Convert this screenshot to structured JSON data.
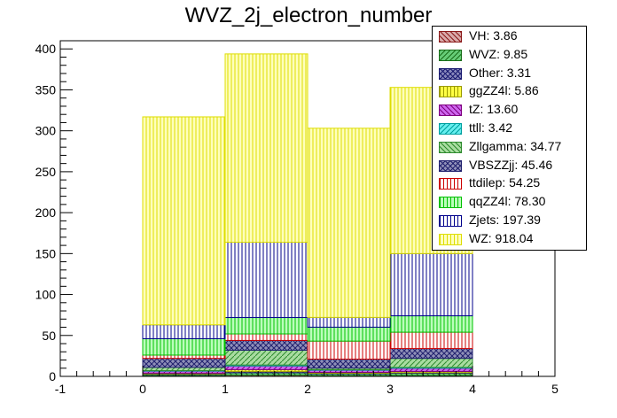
{
  "chart_data": {
    "type": "bar",
    "stacked": true,
    "title": "WVZ_2j_electron_number",
    "xlabel": "",
    "ylabel": "",
    "xlim": [
      -1,
      5
    ],
    "ylim": [
      0,
      410
    ],
    "x_ticks": [
      "-1",
      "0",
      "1",
      "2",
      "3",
      "4",
      "5"
    ],
    "y_ticks": [
      "0",
      "50",
      "100",
      "150",
      "200",
      "250",
      "300",
      "350",
      "400"
    ],
    "bins": [
      [
        0,
        1
      ],
      [
        1,
        2
      ],
      [
        2,
        3
      ],
      [
        3,
        4
      ]
    ],
    "legend_position": "top-right",
    "grid": false,
    "series": [
      {
        "name": "VH: 3.86",
        "color": "#8b1a1a",
        "fill": "#d8a8a8",
        "values": [
          0.8,
          1.4,
          0.8,
          1.0
        ]
      },
      {
        "name": "WVZ: 9.85",
        "color": "#1a6e1a",
        "fill": "#66cc77",
        "values": [
          1.6,
          3.0,
          2.4,
          2.8
        ]
      },
      {
        "name": "Other: 3.31",
        "color": "#191970",
        "fill": "#8888bb",
        "values": [
          0.6,
          1.4,
          0.6,
          0.7
        ]
      },
      {
        "name": "ggZZ4l: 5.86",
        "color": "#9a9a00",
        "fill": "#ffff44",
        "values": [
          0.9,
          2.4,
          1.1,
          1.5
        ]
      },
      {
        "name": "tZ: 13.60",
        "color": "#800080",
        "fill": "#cc66ee",
        "values": [
          2.5,
          4.5,
          2.6,
          4.0
        ]
      },
      {
        "name": "ttll: 3.42",
        "color": "#00a0a0",
        "fill": "#66eeee",
        "values": [
          0.6,
          1.2,
          0.6,
          1.0
        ]
      },
      {
        "name": "Zllgamma: 34.77",
        "color": "#2e8b2e",
        "fill": "#a8dca0",
        "values": [
          4.0,
          18.0,
          2.0,
          11.0
        ]
      },
      {
        "name": "VBSZZjj: 45.46",
        "color": "#20206e",
        "fill": "#9090b8",
        "values": [
          11.0,
          12.0,
          11.0,
          12.0
        ]
      },
      {
        "name": "ttdilep: 54.25",
        "color": "#cc0000",
        "fill": "#ffffff",
        "values": [
          4.0,
          8.0,
          22.0,
          20.0
        ]
      },
      {
        "name": "qqZZ4l: 78.30",
        "color": "#00c000",
        "fill": "#bbffbb",
        "values": [
          20.0,
          20.0,
          17.0,
          20.0
        ]
      },
      {
        "name": "Zjets: 197.39",
        "color": "#00008b",
        "fill": "#ffffff",
        "values": [
          17.0,
          92.0,
          12.0,
          76.0
        ]
      },
      {
        "name": "WZ: 918.04",
        "color": "#dddd00",
        "fill": "#ffffbb",
        "values": [
          254.0,
          230.0,
          231.0,
          203.0
        ]
      }
    ]
  }
}
